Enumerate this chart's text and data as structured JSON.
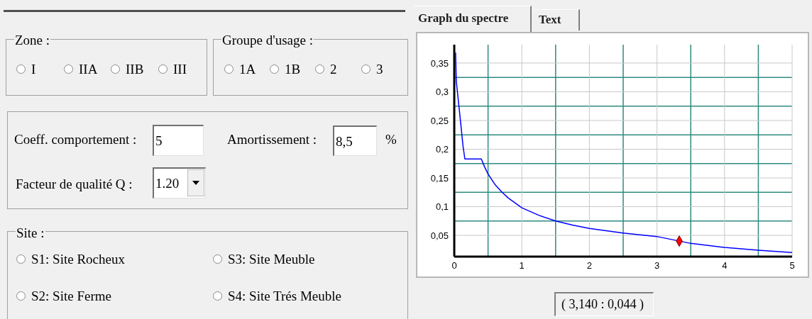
{
  "chart_data": [
    {
      "type": "other",
      "annotations": [
        "Zone :",
        "I",
        "IIA",
        "IIB",
        "III",
        "Groupe d'usage :",
        "1A",
        "1B",
        "2",
        "3",
        "Coeff. comportement :",
        "5",
        "Amortissement :",
        "8,5",
        "%",
        "Facteur de qualité Q :",
        "1.20",
        "Site :",
        "S1: Site Rocheux",
        "S3: Site Meuble",
        "S2: Site Ferme",
        "S4: Site Trés Meuble"
      ]
    },
    {
      "type": "line",
      "xlim": [
        0,
        5
      ],
      "ylim": [
        0.013,
        0.382
      ],
      "xticks": [
        0,
        {
          "value": 0.5,
          "label": null
        },
        1,
        {
          "value": 1.5,
          "label": null
        },
        2,
        {
          "value": 2.5,
          "label": null
        },
        3,
        {
          "value": 3.5,
          "label": null
        },
        4,
        {
          "value": 4.5,
          "label": null
        },
        5
      ],
      "yticks": [
        {
          "value": 0.05,
          "label": "0,05"
        },
        {
          "value": 0.075,
          "label": null
        },
        {
          "value": 0.1,
          "label": "0,1"
        },
        {
          "value": 0.125,
          "label": null
        },
        {
          "value": 0.15,
          "label": "0,15"
        },
        {
          "value": 0.175,
          "label": null
        },
        {
          "value": 0.2,
          "label": "0,2"
        },
        {
          "value": 0.225,
          "label": null
        },
        {
          "value": 0.25,
          "label": "0,25"
        },
        {
          "value": 0.275,
          "label": null
        },
        {
          "value": 0.3,
          "label": "0,3"
        },
        {
          "value": 0.325,
          "label": null
        },
        {
          "value": 0.35,
          "label": "0,35"
        }
      ],
      "grid": true,
      "series": [
        {
          "type": "line",
          "color": "#0000ff",
          "marker": "none",
          "x": [
            0.02,
            0.03,
            0.06,
            0.1,
            0.13,
            0.157,
            0.2,
            0.3,
            0.4,
            0.45,
            0.5,
            0.6,
            0.7,
            0.8,
            1,
            1.25,
            1.5,
            1.75,
            2,
            2.5,
            3,
            3.5,
            4,
            4.5,
            5
          ],
          "values": [
            0.368,
            0.319,
            0.285,
            0.24,
            0.205,
            0.183,
            0.183,
            0.183,
            0.183,
            0.169,
            0.157,
            0.139,
            0.126,
            0.115,
            0.098,
            0.085,
            0.075,
            0.068,
            0.062,
            0.054,
            0.048,
            0.036,
            0.029,
            0.024,
            0.02
          ]
        },
        {
          "type": "scatter",
          "color": "#ff0000",
          "marker": "diamond",
          "x": [
            3.33
          ],
          "values": [
            0.04
          ]
        }
      ],
      "annotations": [
        "Graph du spectre",
        "Text",
        "( 3,140 : 0,044 )"
      ]
    }
  ]
}
